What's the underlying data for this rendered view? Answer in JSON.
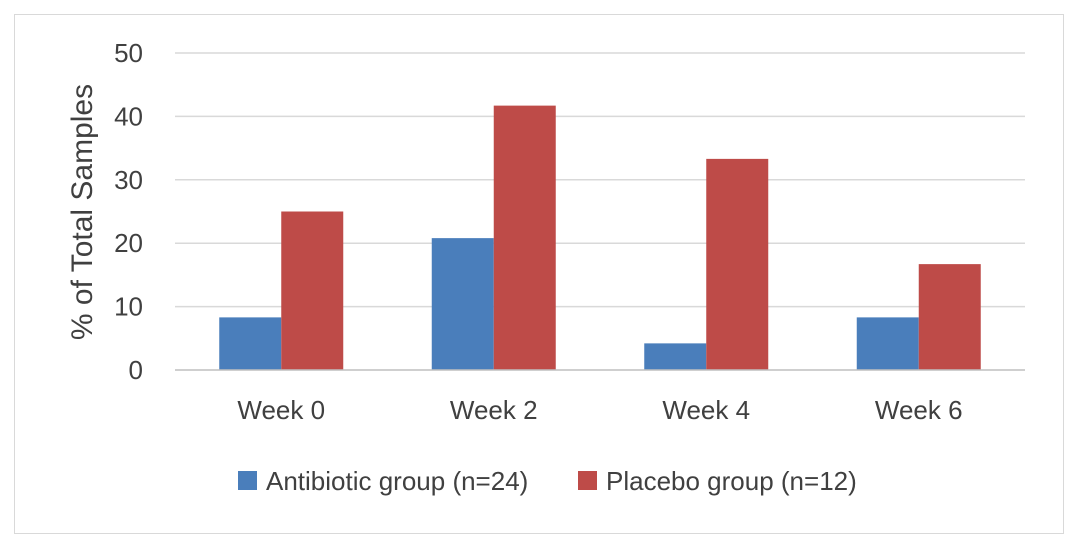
{
  "chart_data": {
    "type": "bar",
    "categories": [
      "Week 0",
      "Week 2",
      "Week 4",
      "Week 6"
    ],
    "series": [
      {
        "name": "Antibiotic group (n=24)",
        "values": [
          8.3,
          20.8,
          4.2,
          8.3
        ],
        "color": "#4a7ebb"
      },
      {
        "name": "Placebo group (n=12)",
        "values": [
          25.0,
          41.7,
          33.3,
          16.7
        ],
        "color": "#be4b48"
      }
    ],
    "title": "",
    "xlabel": "",
    "ylabel": "% of  Total Samples",
    "ylim": [
      0,
      50
    ],
    "yticks": [
      "0",
      "10",
      "20",
      "30",
      "40",
      "50"
    ],
    "grid": true,
    "legend_position": "bottom",
    "colors": {
      "gridline": "#d9d9d9",
      "axis": "#bfbfbf",
      "text": "#404040"
    }
  }
}
